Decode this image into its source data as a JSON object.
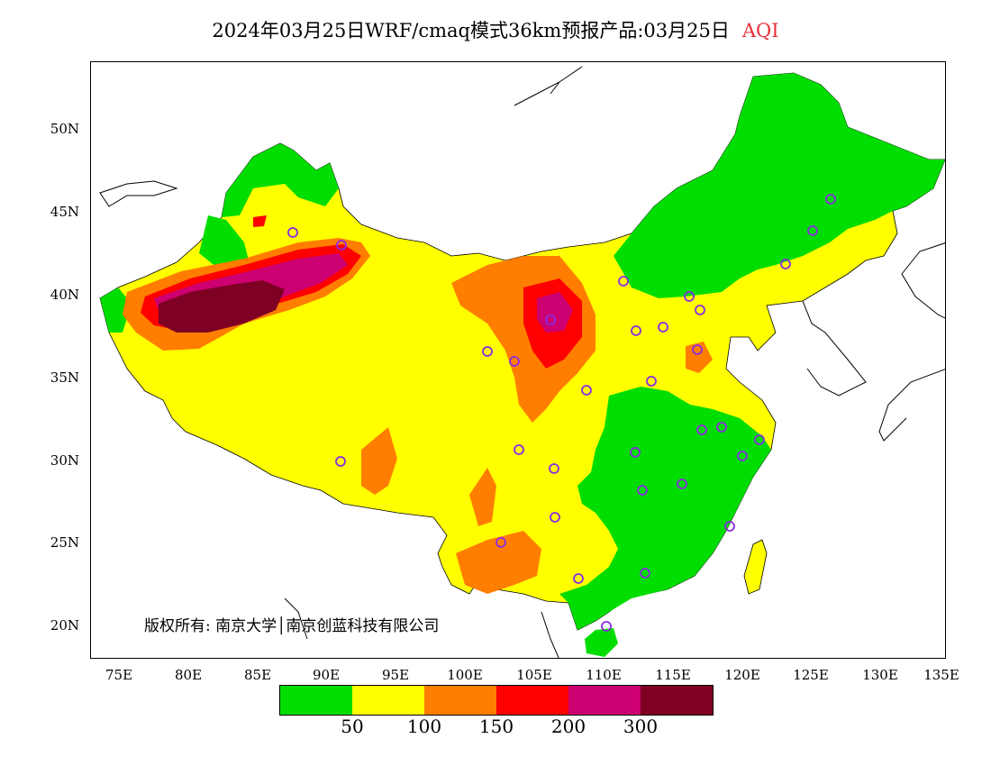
{
  "title": {
    "main": "2024年03月25日WRF/cmaq模式36km预报产品:03月25日",
    "variable": "AQI"
  },
  "axes": {
    "y_ticks": [
      "50N",
      "45N",
      "40N",
      "35N",
      "30N",
      "25N",
      "20N"
    ],
    "x_ticks": [
      "75E",
      "80E",
      "85E",
      "90E",
      "95E",
      "100E",
      "105E",
      "110E",
      "115E",
      "120E",
      "125E",
      "130E",
      "135E"
    ]
  },
  "copyright": "版权所有: 南京大学│南京创蓝科技有限公司",
  "colorbar": {
    "colors": [
      "#00dd00",
      "#ffff00",
      "#ff7e00",
      "#ff0000",
      "#cc0070",
      "#7e0023"
    ],
    "labels": [
      "50",
      "100",
      "150",
      "200",
      "300"
    ]
  }
}
